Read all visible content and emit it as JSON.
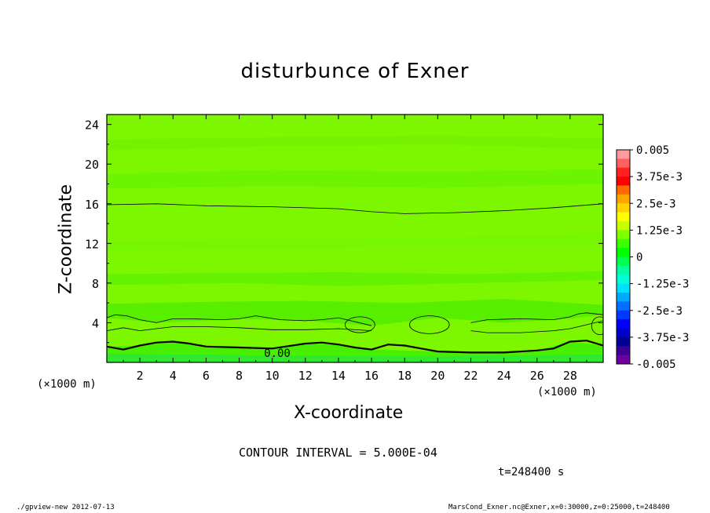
{
  "chart_data": {
    "type": "heatmap",
    "title": "disturbunce of Exner",
    "xlabel": "X-coordinate",
    "ylabel": "Z-coordinate",
    "x_unit": "(×1000 m)",
    "y_unit": "(×1000 m)",
    "xlim": [
      0,
      30
    ],
    "ylim": [
      0,
      25
    ],
    "x_ticks": [
      2,
      4,
      6,
      8,
      10,
      12,
      14,
      16,
      18,
      20,
      22,
      24,
      26,
      28
    ],
    "y_ticks": [
      4,
      8,
      12,
      16,
      20,
      24
    ],
    "colorbar": {
      "min": -0.005,
      "max": 0.005,
      "labels": [
        "0.005",
        "3.75e-3",
        "2.5e-3",
        "1.25e-3",
        "0",
        "-1.25e-3",
        "-2.5e-3",
        "-3.75e-3",
        "-0.005"
      ],
      "colors_top_to_bottom": [
        "#ff9b9b",
        "#ff6060",
        "#ff2020",
        "#ff0000",
        "#ff6a00",
        "#ffa500",
        "#ffd200",
        "#ffff00",
        "#c8ff00",
        "#80ff00",
        "#3cff00",
        "#00ff00",
        "#00ff50",
        "#00ffa0",
        "#00ffd8",
        "#00e0ff",
        "#00a8ff",
        "#0070ff",
        "#0038ff",
        "#0000ff",
        "#0000c8",
        "#000096",
        "#3c0096",
        "#6e00a0"
      ]
    },
    "contour_interval": "CONTOUR INTERVAL = 5.000E-04",
    "contour_label": "0.00",
    "contour_lines": [
      {
        "name": "z16",
        "points": [
          [
            0,
            15.9
          ],
          [
            3,
            16.0
          ],
          [
            6,
            15.8
          ],
          [
            10,
            15.7
          ],
          [
            14,
            15.5
          ],
          [
            16,
            15.2
          ],
          [
            18,
            15.0
          ],
          [
            21,
            15.1
          ],
          [
            24,
            15.3
          ],
          [
            27,
            15.6
          ],
          [
            30,
            16.0
          ]
        ]
      },
      {
        "name": "z4.5",
        "points": [
          [
            0,
            4.5
          ],
          [
            0.5,
            4.8
          ],
          [
            1.2,
            4.7
          ],
          [
            2,
            4.3
          ],
          [
            3,
            4.0
          ],
          [
            4,
            4.4
          ],
          [
            5,
            4.4
          ],
          [
            7,
            4.3
          ],
          [
            8,
            4.4
          ],
          [
            9,
            4.7
          ],
          [
            10.5,
            4.3
          ],
          [
            12,
            4.2
          ],
          [
            13,
            4.3
          ],
          [
            14,
            4.5
          ],
          [
            15,
            4.1
          ],
          [
            16,
            3.7
          ]
        ]
      },
      {
        "name": "z3.5",
        "points": [
          [
            0,
            3.2
          ],
          [
            1,
            3.5
          ],
          [
            2,
            3.2
          ],
          [
            3,
            3.4
          ],
          [
            4,
            3.6
          ],
          [
            6,
            3.6
          ],
          [
            8,
            3.5
          ],
          [
            10,
            3.3
          ],
          [
            12,
            3.3
          ],
          [
            14,
            3.4
          ],
          [
            16,
            3.2
          ]
        ]
      },
      {
        "name": "zero",
        "points": [
          [
            0,
            1.6
          ],
          [
            1,
            1.3
          ],
          [
            2,
            1.7
          ],
          [
            3,
            2.0
          ],
          [
            4,
            2.1
          ],
          [
            5,
            1.9
          ],
          [
            6,
            1.6
          ],
          [
            8,
            1.5
          ],
          [
            10,
            1.4
          ],
          [
            12,
            1.9
          ],
          [
            13,
            2.0
          ],
          [
            14,
            1.8
          ],
          [
            15,
            1.5
          ],
          [
            16,
            1.3
          ],
          [
            17,
            1.8
          ],
          [
            18,
            1.7
          ],
          [
            19,
            1.4
          ],
          [
            20,
            1.1
          ],
          [
            22,
            1.0
          ],
          [
            24,
            1.0
          ],
          [
            26,
            1.2
          ],
          [
            27,
            1.4
          ],
          [
            28,
            2.1
          ],
          [
            29,
            2.2
          ],
          [
            30,
            1.7
          ]
        ]
      },
      {
        "name": "right-band",
        "points": [
          [
            22,
            3.2
          ],
          [
            23,
            3.0
          ],
          [
            25,
            3.0
          ],
          [
            27,
            3.2
          ],
          [
            28,
            3.4
          ],
          [
            29,
            3.8
          ],
          [
            30,
            4.2
          ]
        ]
      },
      {
        "name": "right-band-top",
        "points": [
          [
            22,
            4.0
          ],
          [
            23,
            4.3
          ],
          [
            25,
            4.4
          ],
          [
            27,
            4.3
          ],
          [
            28,
            4.6
          ],
          [
            28.5,
            4.9
          ],
          [
            29,
            5.0
          ],
          [
            30,
            4.8
          ]
        ]
      }
    ],
    "contour_loops": [
      {
        "cx": 15.3,
        "cy": 3.8,
        "rx": 0.9,
        "ry": 0.8
      },
      {
        "cx": 19.5,
        "cy": 3.8,
        "rx": 1.2,
        "ry": 0.9
      },
      {
        "cx": 29.8,
        "cy": 3.7,
        "rx": 0.5,
        "ry": 0.9
      }
    ],
    "bands": [
      {
        "name": "low-green",
        "color": "#48f000",
        "points": [
          [
            0,
            0
          ],
          [
            30,
            0
          ],
          [
            30,
            1.7
          ],
          [
            28,
            2.1
          ],
          [
            26,
            1.2
          ],
          [
            22,
            1.0
          ],
          [
            20,
            1.1
          ],
          [
            16,
            1.3
          ],
          [
            14,
            1.8
          ],
          [
            12,
            1.9
          ],
          [
            10,
            1.4
          ],
          [
            6,
            1.6
          ],
          [
            4,
            2.1
          ],
          [
            2,
            1.7
          ],
          [
            0,
            1.6
          ]
        ]
      },
      {
        "name": "bottom-strip",
        "color": "#30e830",
        "points": [
          [
            0,
            0
          ],
          [
            30,
            0
          ],
          [
            30,
            0.8
          ],
          [
            20,
            0.6
          ],
          [
            10,
            0.7
          ],
          [
            0,
            0.9
          ]
        ]
      },
      {
        "name": "mid-band-1",
        "color": "#58ee00",
        "points": [
          [
            0,
            4.5
          ],
          [
            3,
            4.0
          ],
          [
            8,
            4.4
          ],
          [
            12,
            4.2
          ],
          [
            16,
            3.7
          ],
          [
            20,
            4.5
          ],
          [
            24,
            4.0
          ],
          [
            28,
            4.4
          ],
          [
            30,
            4.8
          ],
          [
            30,
            5.8
          ],
          [
            24,
            6.4
          ],
          [
            18,
            6.0
          ],
          [
            12,
            6.2
          ],
          [
            6,
            6.1
          ],
          [
            0,
            5.9
          ]
        ]
      },
      {
        "name": "mid-band-2",
        "color": "#64f200",
        "points": [
          [
            0,
            7.8
          ],
          [
            8,
            8.0
          ],
          [
            14,
            7.7
          ],
          [
            22,
            8.0
          ],
          [
            30,
            8.3
          ],
          [
            30,
            9.2
          ],
          [
            22,
            8.9
          ],
          [
            14,
            9.1
          ],
          [
            6,
            9.0
          ],
          [
            0,
            8.9
          ]
        ]
      },
      {
        "name": "upper-band",
        "color": "#76f600",
        "points": [
          [
            0,
            11.2
          ],
          [
            6,
            11.5
          ],
          [
            12,
            11.6
          ],
          [
            20,
            11.8
          ],
          [
            30,
            12.0
          ],
          [
            30,
            13.0
          ],
          [
            20,
            12.6
          ],
          [
            12,
            12.4
          ],
          [
            6,
            12.3
          ],
          [
            0,
            12.1
          ]
        ]
      },
      {
        "name": "top-band",
        "color": "#6cf400",
        "points": [
          [
            0,
            17.5
          ],
          [
            10,
            17.8
          ],
          [
            20,
            17.6
          ],
          [
            30,
            18.0
          ],
          [
            30,
            19.5
          ],
          [
            20,
            19.2
          ],
          [
            10,
            19.4
          ],
          [
            0,
            19.0
          ]
        ]
      },
      {
        "name": "top-strip",
        "color": "#74f200",
        "points": [
          [
            0,
            21.4
          ],
          [
            10,
            21.8
          ],
          [
            20,
            22.0
          ],
          [
            30,
            21.5
          ],
          [
            30,
            22.6
          ],
          [
            20,
            22.9
          ],
          [
            10,
            22.7
          ],
          [
            0,
            22.5
          ]
        ]
      }
    ],
    "background_color": "#7cf700"
  },
  "footer": {
    "time": "t=248400 s",
    "program": "./gpview-new  2012-07-13",
    "source": "MarsCond_Exner.nc@Exner,x=0:30000,z=0:25000,t=248400"
  }
}
